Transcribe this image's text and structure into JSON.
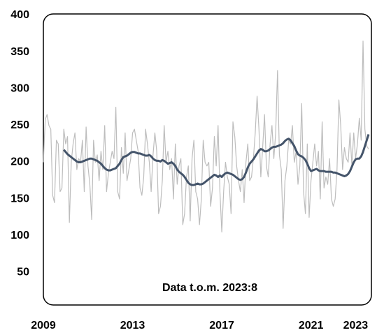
{
  "chart_data": {
    "type": "line",
    "annotation": "Data t.o.m. 2023:8",
    "categories": [
      "2009",
      null,
      null,
      null,
      null,
      null,
      null,
      null,
      null,
      null,
      null,
      null,
      null,
      null,
      null,
      null,
      null,
      null,
      null,
      null,
      null,
      null,
      null,
      null,
      null,
      null,
      null,
      null,
      null,
      null,
      null,
      null,
      null,
      null,
      null,
      null,
      null,
      null,
      null,
      null,
      null,
      null,
      null,
      null,
      null,
      null,
      null,
      null,
      "2013",
      null,
      null,
      null,
      null,
      null,
      null,
      null,
      null,
      null,
      null,
      null,
      null,
      null,
      null,
      null,
      null,
      null,
      null,
      null,
      null,
      null,
      null,
      null,
      null,
      null,
      null,
      null,
      null,
      null,
      null,
      null,
      null,
      null,
      null,
      null,
      null,
      null,
      null,
      null,
      null,
      null,
      null,
      null,
      null,
      null,
      null,
      null,
      "2017",
      null,
      null,
      null,
      null,
      null,
      null,
      null,
      null,
      null,
      null,
      null,
      null,
      null,
      null,
      null,
      null,
      null,
      null,
      null,
      null,
      null,
      null,
      null,
      null,
      null,
      null,
      null,
      null,
      null,
      null,
      null,
      null,
      null,
      null,
      null,
      null,
      null,
      null,
      null,
      null,
      null,
      null,
      null,
      null,
      null,
      null,
      null,
      "2021",
      null,
      null,
      null,
      null,
      null,
      null,
      null,
      null,
      null,
      null,
      null,
      null,
      null,
      null,
      null,
      null,
      null,
      null,
      null,
      null,
      null,
      null,
      null,
      "2023",
      null,
      null,
      null,
      null,
      null,
      null,
      null
    ],
    "series": [
      {
        "color": "#bdbdbd",
        "width": 1.2,
        "values": [
          200,
          258,
          265,
          250,
          245,
          155,
          145,
          230,
          225,
          160,
          165,
          245,
          225,
          235,
          118,
          200,
          225,
          240,
          190,
          205,
          200,
          230,
          160,
          248,
          195,
          170,
          122,
          230,
          200,
          210,
          175,
          215,
          190,
          250,
          160,
          185,
          200,
          215,
          205,
          275,
          160,
          150,
          220,
          185,
          240,
          175,
          190,
          205,
          240,
          245,
          230,
          215,
          165,
          155,
          180,
          245,
          225,
          200,
          160,
          210,
          240,
          215,
          130,
          140,
          175,
          250,
          200,
          215,
          190,
          205,
          150,
          225,
          170,
          195,
          205,
          115,
          130,
          180,
          195,
          120,
          205,
          230,
          160,
          150,
          115,
          150,
          230,
          200,
          195,
          200,
          140,
          165,
          235,
          195,
          250,
          160,
          105,
          160,
          200,
          180,
          170,
          130,
          255,
          235,
          195,
          175,
          160,
          190,
          145,
          200,
          225,
          175,
          180,
          205,
          240,
          290,
          245,
          180,
          220,
          265,
          195,
          180,
          225,
          250,
          205,
          240,
          325,
          210,
          190,
          110,
          175,
          195,
          230,
          225,
          250,
          200,
          215,
          170,
          195,
          280,
          160,
          130,
          225,
          125,
          175,
          200,
          225,
          195,
          215,
          150,
          255,
          165,
          180,
          170,
          205,
          150,
          140,
          150,
          190,
          285,
          250,
          190,
          220,
          205,
          200,
          240,
          195,
          240,
          205,
          225,
          260,
          230,
          365,
          245,
          222,
          218
        ]
      },
      {
        "color": "#44546a",
        "width": 3,
        "values": [
          null,
          null,
          null,
          null,
          null,
          null,
          null,
          null,
          null,
          null,
          null,
          217,
          214,
          211,
          209,
          207,
          205,
          203,
          201,
          200,
          200,
          201,
          202,
          203,
          204,
          205,
          205,
          204,
          203,
          202,
          200,
          198,
          195,
          192,
          190,
          189,
          189,
          190,
          191,
          192,
          195,
          198,
          203,
          207,
          208,
          209,
          211,
          213,
          214,
          214,
          213,
          212,
          212,
          211,
          210,
          209,
          209,
          210,
          208,
          205,
          203,
          202,
          202,
          201,
          203,
          202,
          200,
          198,
          199,
          200,
          198,
          195,
          190,
          187,
          185,
          183,
          180,
          176,
          172,
          170,
          169,
          169,
          170,
          171,
          170,
          170,
          171,
          173,
          175,
          177,
          179,
          181,
          183,
          182,
          180,
          182,
          180,
          183,
          185,
          186,
          185,
          184,
          183,
          181,
          179,
          177,
          176,
          177,
          180,
          186,
          193,
          198,
          201,
          204,
          208,
          212,
          216,
          218,
          217,
          215,
          215,
          216,
          218,
          220,
          221,
          221,
          222,
          223,
          224,
          226,
          229,
          231,
          232,
          230,
          226,
          222,
          216,
          211,
          209,
          208,
          206,
          203,
          198,
          192,
          188,
          189,
          190,
          191,
          189,
          188,
          188,
          188,
          187,
          187,
          187,
          187,
          186,
          186,
          185,
          184,
          183,
          182,
          181,
          182,
          184,
          188,
          194,
          200,
          204,
          205,
          205,
          208,
          214,
          222,
          230,
          238
        ]
      }
    ],
    "ylim": [
      0,
      400
    ],
    "yticks": [
      50,
      100,
      150,
      200,
      250,
      300,
      350,
      400
    ],
    "grid": false
  }
}
